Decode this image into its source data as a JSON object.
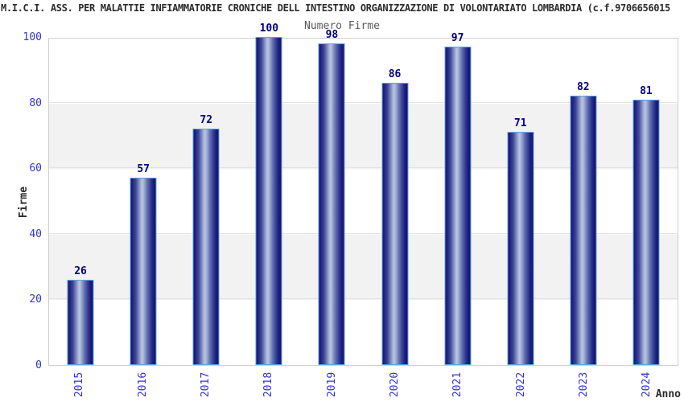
{
  "page": {
    "title": "M.I.C.I. ASS. PER MALATTIE INFIAMMATORIE CRONICHE DELL INTESTINO ORGANIZZAZIONE DI VOLONTARIATO LOMBARDIA (c.f.9706656015"
  },
  "chart_data": {
    "type": "bar",
    "title": "Numero Firme",
    "xlabel": "Anno",
    "ylabel": "Firme",
    "categories": [
      "2015",
      "2016",
      "2017",
      "2018",
      "2019",
      "2020",
      "2021",
      "2022",
      "2023",
      "2024"
    ],
    "values": [
      26,
      57,
      72,
      100,
      98,
      86,
      97,
      71,
      82,
      81
    ],
    "ylim": [
      0,
      100
    ],
    "yticks": [
      0,
      20,
      40,
      60,
      80,
      100
    ],
    "legend": "none",
    "grid": "alternating horizontal gray bands every 20 units with light gridlines",
    "colors": {
      "bar_gradient_dark": "#15156a",
      "bar_gradient_light": "#bac4e1",
      "bar_border": "#5aa2e2",
      "axis_tick_blue": "#3333cc",
      "value_label_navy": "#00007d",
      "band_gray": "#f2f2f2",
      "grid_line": "#e2e2e2",
      "plot_border": "#cfcfcf",
      "title_text": "#2b2b2b",
      "subtitle_text": "#595959"
    }
  }
}
